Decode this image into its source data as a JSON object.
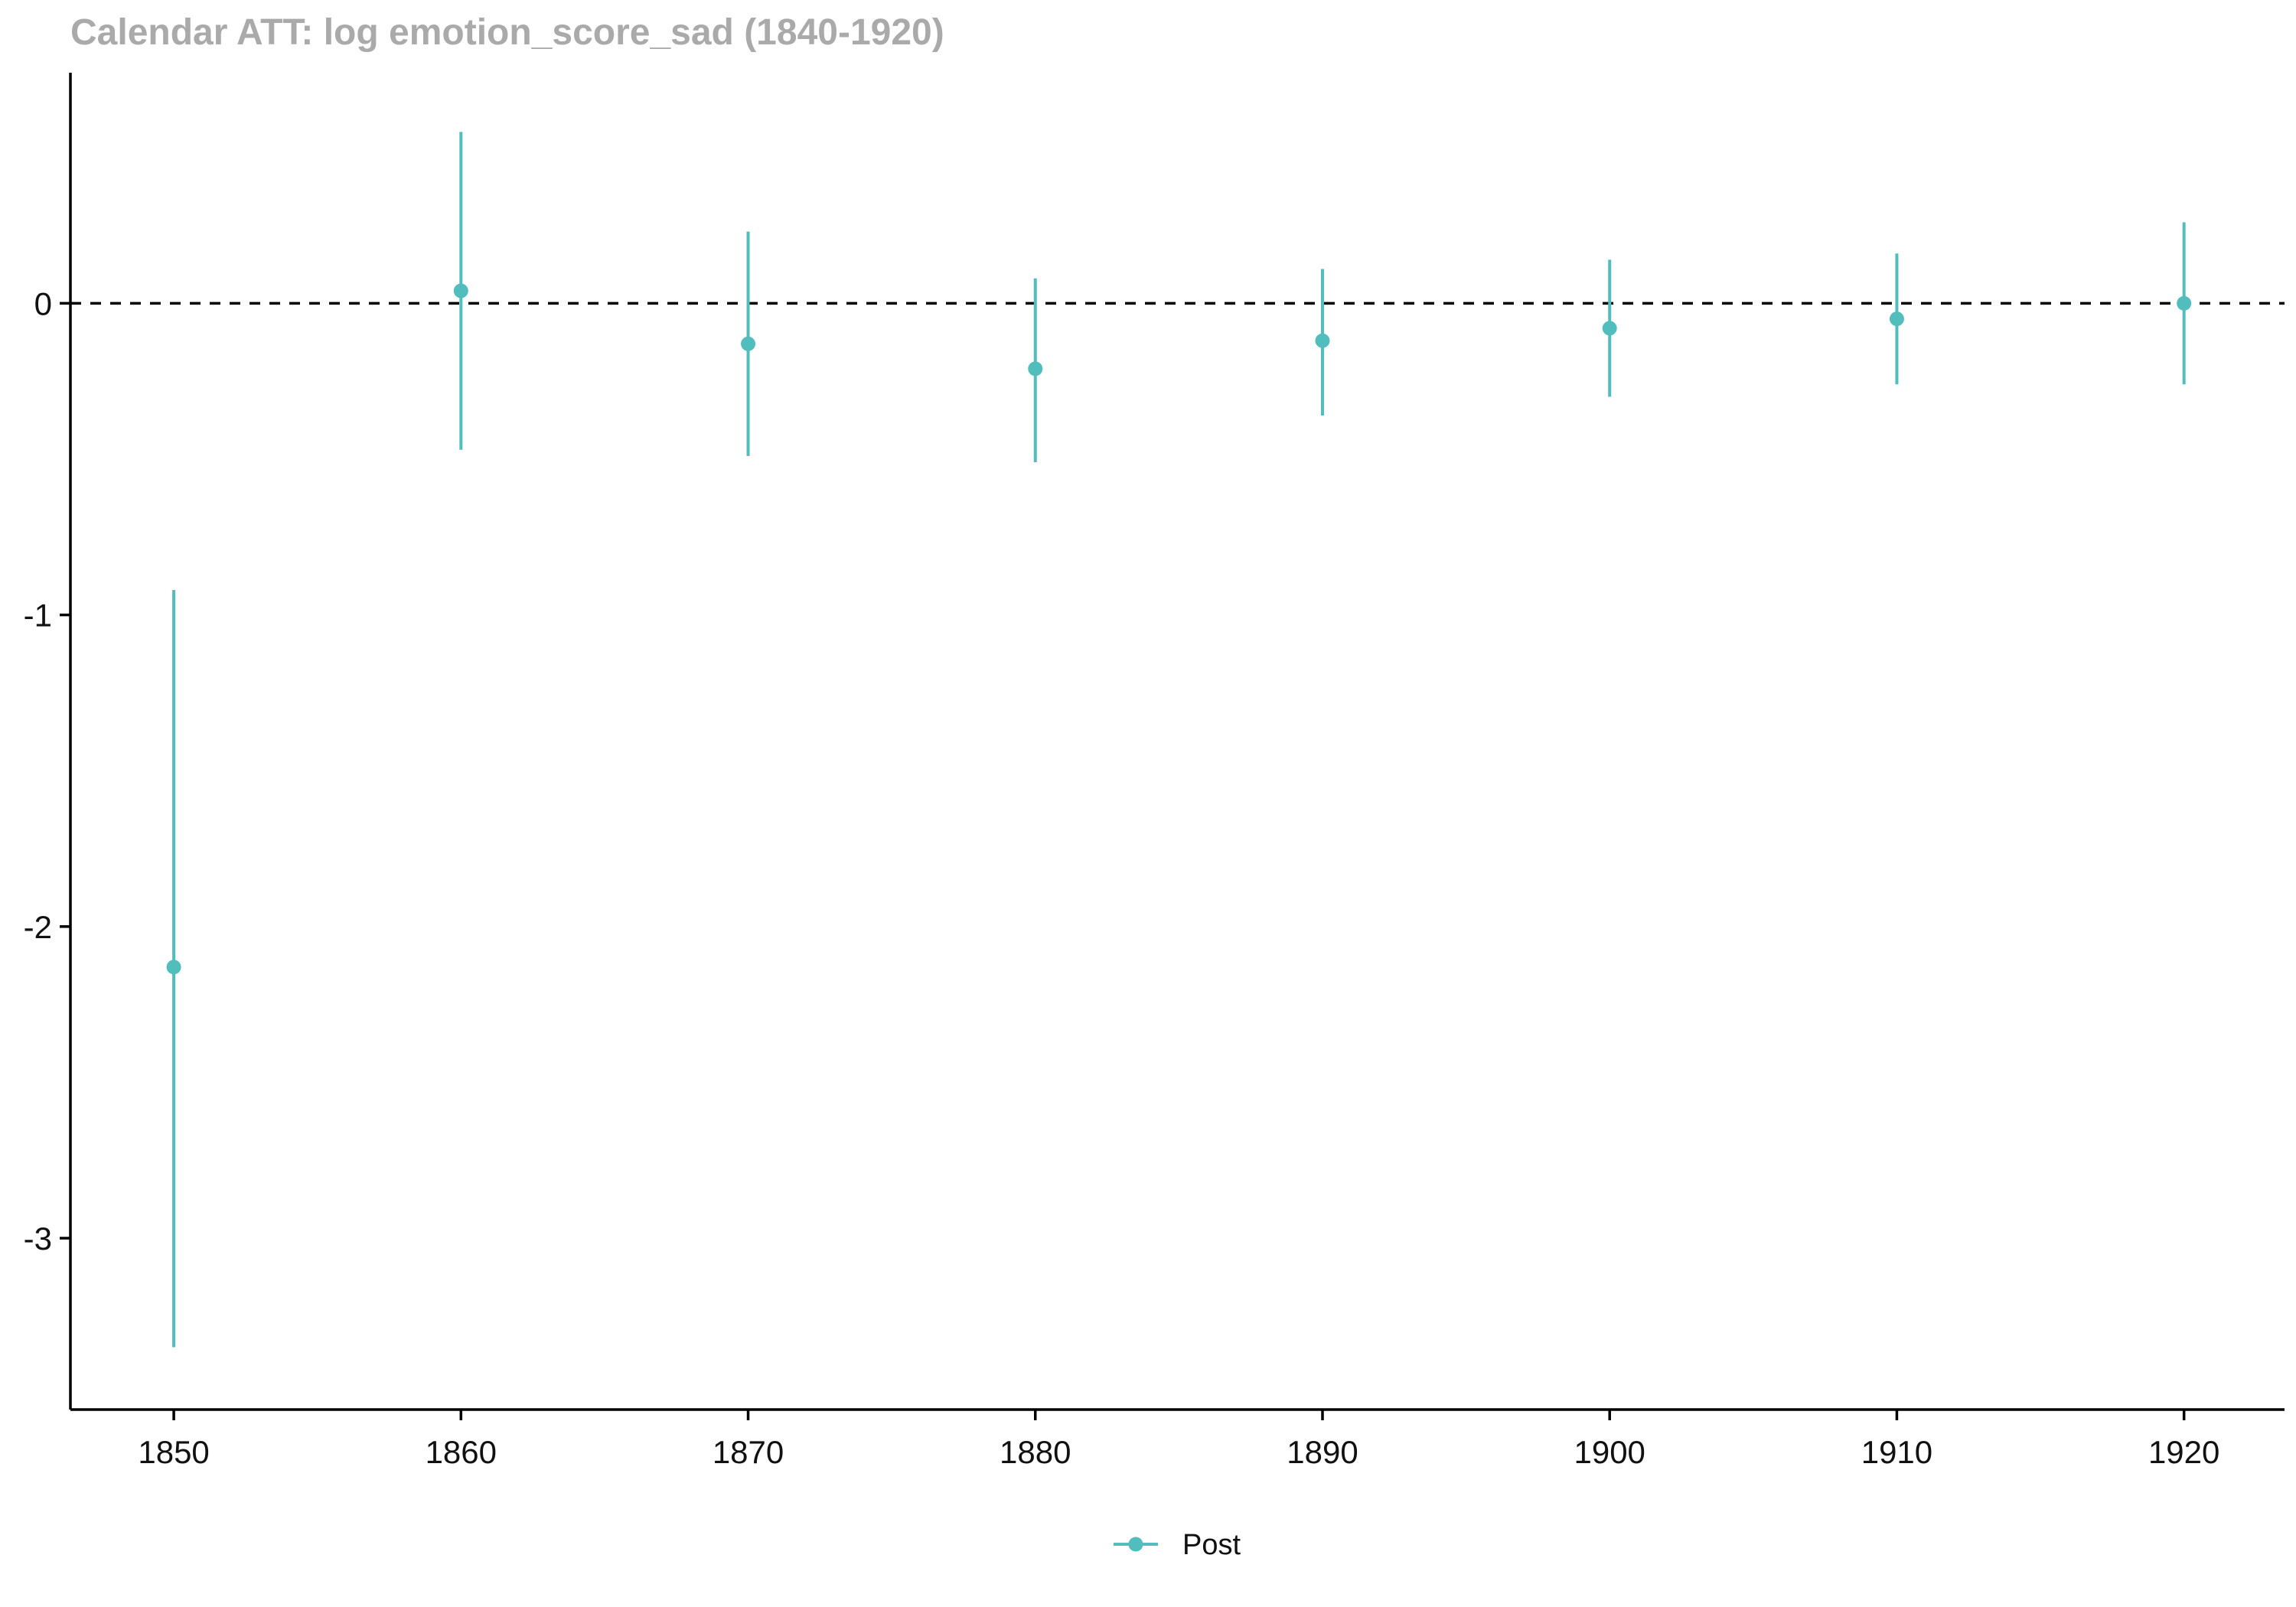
{
  "chart_data": {
    "type": "scatter",
    "title": "Calendar ATT: log emotion_score_sad (1840-1920)",
    "xlabel": "",
    "ylabel": "",
    "x_ticks": [
      "1850",
      "1860",
      "1870",
      "1880",
      "1890",
      "1900",
      "1910",
      "1920"
    ],
    "y_ticks": [
      "0",
      "-1",
      "-2",
      "-3"
    ],
    "xlim": [
      1846.4,
      1923.5
    ],
    "ylim": [
      -3.55,
      0.74
    ],
    "reference_line": {
      "y": 0,
      "style": "dashed"
    },
    "grid": false,
    "legend": {
      "position": "bottom",
      "entries": [
        "Post"
      ]
    },
    "series": [
      {
        "name": "Post",
        "color": "#52BDBD",
        "points": [
          {
            "x": 1850,
            "y": -2.13,
            "lower": -3.35,
            "upper": -0.92
          },
          {
            "x": 1860,
            "y": 0.04,
            "lower": -0.47,
            "upper": 0.55
          },
          {
            "x": 1870,
            "y": -0.13,
            "lower": -0.49,
            "upper": 0.23
          },
          {
            "x": 1880,
            "y": -0.21,
            "lower": -0.51,
            "upper": 0.08
          },
          {
            "x": 1890,
            "y": -0.12,
            "lower": -0.36,
            "upper": 0.11
          },
          {
            "x": 1900,
            "y": -0.08,
            "lower": -0.3,
            "upper": 0.14
          },
          {
            "x": 1910,
            "y": -0.05,
            "lower": -0.26,
            "upper": 0.16
          },
          {
            "x": 1920,
            "y": 0.0,
            "lower": -0.26,
            "upper": 0.26
          }
        ]
      }
    ],
    "colors": {
      "title": "#AAAAAA",
      "axis": "#000000",
      "series": "#52BDBD"
    }
  }
}
